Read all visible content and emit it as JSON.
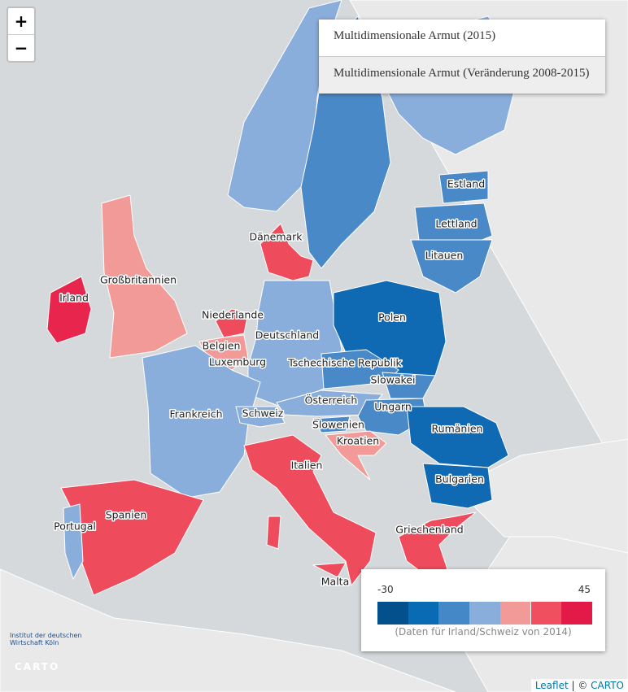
{
  "zoom": {
    "in": "+",
    "out": "−"
  },
  "layer_menu": [
    "Multidimensionale Armut (2015)",
    "Multidimensionale Armut (Veränderung 2008-2015)"
  ],
  "countries": [
    "Estland",
    "Lettland",
    "Litauen",
    "Dänemark",
    "Großbritannien",
    "Irland",
    "Niederlande",
    "Deutschland",
    "Polen",
    "Belgien",
    "Luxemburg",
    "Tschechische Republik",
    "Slowakei",
    "Österreich",
    "Frankreich",
    "Schweiz",
    "Ungarn",
    "Slowenien",
    "Rumänien",
    "Kroatien",
    "Italien",
    "Bulgarien",
    "Spanien",
    "Portugal",
    "Griechenland",
    "Malta"
  ],
  "legend": {
    "min": "-30",
    "max": "45",
    "note": "(Daten für Irland/Schweiz von 2014)"
  },
  "logo": {
    "line1": "Institut der deutschen",
    "line2": "Wirtschaft Köln",
    "carto": "CARTO"
  },
  "attribution": {
    "leaflet": "Leaflet",
    "sep": " | © ",
    "carto": "CARTO"
  }
}
